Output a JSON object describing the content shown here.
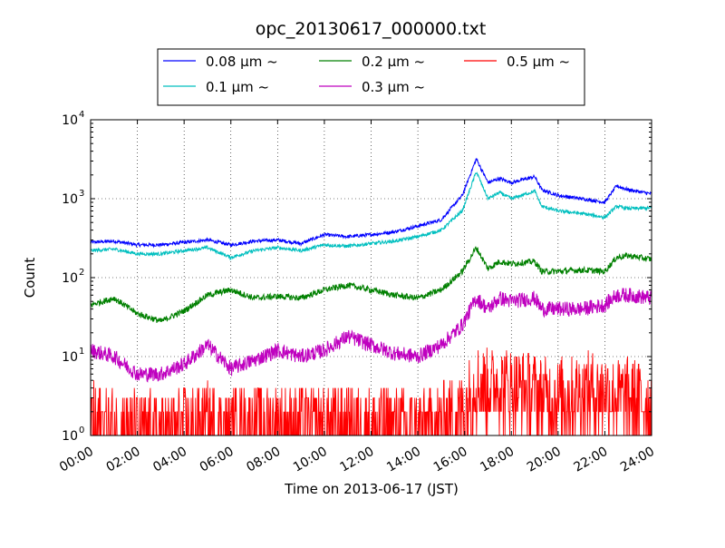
{
  "chart_data": {
    "type": "line",
    "title": "opc_20130617_000000.txt",
    "xlabel": "Time on 2013-06-17 (JST)",
    "ylabel": "Count",
    "x_unit": "hour",
    "xlim": [
      0,
      24
    ],
    "ylim": [
      1,
      10000
    ],
    "y_scale": "log",
    "grid": true,
    "legend_position": "top-center-outside",
    "x_ticks": [
      0,
      2,
      4,
      6,
      8,
      10,
      12,
      14,
      16,
      18,
      20,
      22,
      24
    ],
    "x_tick_labels": [
      "00:00",
      "02:00",
      "04:00",
      "06:00",
      "08:00",
      "10:00",
      "12:00",
      "14:00",
      "16:00",
      "18:00",
      "20:00",
      "22:00",
      "24:00"
    ],
    "y_ticks": [
      {
        "value": 1,
        "base": "10",
        "exp": "0"
      },
      {
        "value": 10,
        "base": "10",
        "exp": "1"
      },
      {
        "value": 100,
        "base": "10",
        "exp": "2"
      },
      {
        "value": 1000,
        "base": "10",
        "exp": "3"
      },
      {
        "value": 10000,
        "base": "10",
        "exp": "4"
      }
    ],
    "series": [
      {
        "name": "0.08 μm ~",
        "color": "#0000ff",
        "x": [
          0,
          1,
          2,
          3,
          4,
          5,
          6,
          7,
          8,
          9,
          10,
          11,
          12,
          13,
          14,
          15,
          15.9,
          16.5,
          17,
          17.5,
          18,
          19,
          19.3,
          20,
          21,
          22,
          22.5,
          23,
          24
        ],
        "y": [
          280,
          290,
          260,
          260,
          280,
          300,
          260,
          290,
          300,
          270,
          350,
          330,
          350,
          380,
          450,
          540,
          1100,
          3200,
          1600,
          1800,
          1600,
          1900,
          1300,
          1100,
          1000,
          900,
          1450,
          1300,
          1150
        ]
      },
      {
        "name": "0.1 μm ~",
        "color": "#00bfbf",
        "x": [
          0,
          1,
          2,
          3,
          4,
          5,
          6,
          7,
          8,
          9,
          10,
          11,
          12,
          13,
          14,
          15,
          15.9,
          16.5,
          17,
          17.5,
          18,
          19,
          19.3,
          20,
          21,
          22,
          22.5,
          23,
          24
        ],
        "y": [
          220,
          230,
          200,
          200,
          220,
          240,
          180,
          220,
          240,
          220,
          260,
          250,
          270,
          290,
          330,
          400,
          700,
          2200,
          1000,
          1200,
          1000,
          1250,
          800,
          700,
          650,
          580,
          800,
          750,
          760
        ]
      },
      {
        "name": "0.2 μm ~",
        "color": "#008000",
        "x": [
          0,
          1,
          2,
          3,
          4,
          5,
          6,
          7,
          8,
          9,
          10,
          11,
          12,
          13,
          14,
          15,
          15.9,
          16.5,
          17,
          17.5,
          18,
          19,
          19.3,
          20,
          21,
          22,
          22.5,
          23,
          24
        ],
        "y": [
          45,
          55,
          35,
          28,
          38,
          60,
          70,
          55,
          58,
          55,
          70,
          80,
          70,
          60,
          55,
          70,
          120,
          240,
          130,
          160,
          150,
          160,
          120,
          120,
          125,
          120,
          180,
          190,
          170
        ]
      },
      {
        "name": "0.3 μm ~",
        "color": "#bf00bf",
        "x": [
          0,
          1,
          2,
          3,
          4,
          5,
          6,
          7,
          8,
          9,
          10,
          11,
          12,
          13,
          14,
          15,
          15.9,
          16.5,
          17,
          17.5,
          18,
          19,
          19.3,
          20,
          21,
          22,
          22.5,
          23,
          24
        ],
        "y": [
          12,
          10,
          6,
          6,
          8,
          14,
          7,
          9,
          12,
          10,
          12,
          18,
          14,
          11,
          10,
          14,
          25,
          55,
          40,
          55,
          50,
          55,
          40,
          40,
          40,
          45,
          60,
          60,
          55
        ]
      },
      {
        "name": "0.5 μm ~",
        "color": "#ff0000",
        "x": [
          0,
          1,
          2,
          3,
          4,
          5,
          6,
          7,
          8,
          9,
          10,
          11,
          12,
          13,
          14,
          15,
          15.9,
          16.5,
          17,
          17.5,
          18,
          19,
          19.3,
          20,
          21,
          22,
          22.5,
          23,
          24
        ],
        "y": [
          1.5,
          1.3,
          1.1,
          1.1,
          1.3,
          1.4,
          1.2,
          1.3,
          1.4,
          1.3,
          1.3,
          1.4,
          1.3,
          1.3,
          1.2,
          1.4,
          2,
          4.5,
          4,
          4.5,
          4,
          3.5,
          3,
          3,
          3.5,
          3.5,
          3,
          3,
          2.5
        ]
      }
    ]
  }
}
